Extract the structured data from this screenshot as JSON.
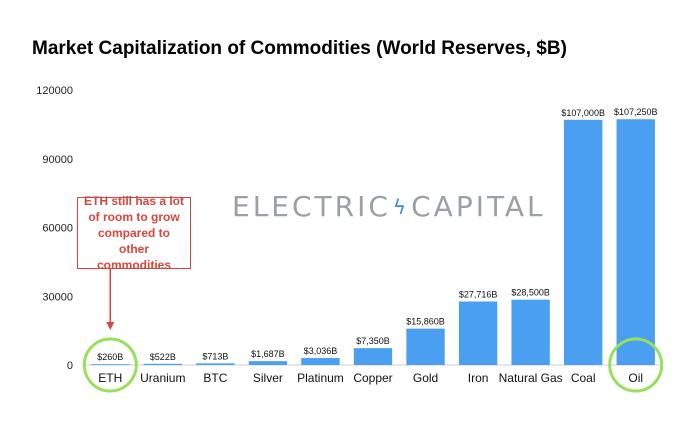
{
  "chart_data": {
    "type": "bar",
    "title": "Market Capitalization of Commodities (World Reserves, $B)",
    "xlabel": "",
    "ylabel": "",
    "categories": [
      "ETH",
      "Uranium",
      "BTC",
      "Silver",
      "Platinum",
      "Copper",
      "Gold",
      "Iron",
      "Natural Gas",
      "Coal",
      "Oil"
    ],
    "values": [
      260,
      522,
      713,
      1687,
      3036,
      7350,
      15860,
      27716,
      28500,
      107000,
      107250
    ],
    "data_labels": [
      "$260B",
      "$522B",
      "$713B",
      "$1,687B",
      "$3,036B",
      "$7,350B",
      "$15,860B",
      "$27,716B",
      "$28,500B",
      "$107,000B",
      "$107,250B"
    ],
    "ylim": [
      0,
      120000
    ],
    "yticks": [
      0,
      30000,
      60000,
      90000,
      120000
    ],
    "ytick_labels": [
      "0",
      "30000",
      "60000",
      "90000",
      "120000"
    ],
    "grid": false,
    "bar_color": "#4a9ff0",
    "highlight_color": "#96e05a",
    "highlighted_categories": [
      "ETH",
      "Oil"
    ],
    "annotation": {
      "text": "ETH still has a lot of room to grow compared to other commodities",
      "color": "#d7463c",
      "target": "ETH"
    }
  },
  "watermark": {
    "left": "ELECTRIC",
    "right": "CAPITAL",
    "bolt_icon": "lightning-bolt-icon"
  }
}
